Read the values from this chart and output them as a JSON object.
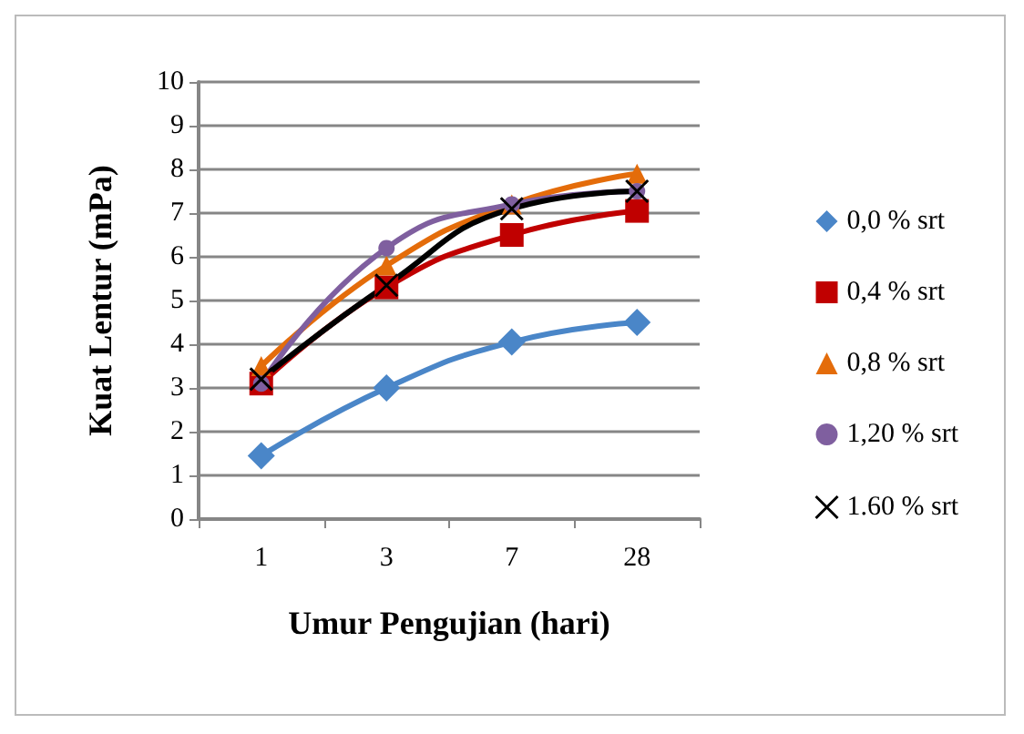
{
  "chart_data": {
    "type": "line",
    "xlabel": "Umur Pengujian (hari)",
    "ylabel": "Kuat Lentur (mPa)",
    "categories": [
      "1",
      "3",
      "7",
      "28"
    ],
    "ylim": [
      0,
      10
    ],
    "yticks": [
      0,
      1,
      2,
      3,
      4,
      5,
      6,
      7,
      8,
      9,
      10
    ],
    "grid": "y",
    "legend": "right",
    "line_style": "solid",
    "series": [
      {
        "name": "0,0 % srt",
        "color": "#4a86c8",
        "marker": "diamond",
        "values": [
          1.45,
          3.0,
          4.05,
          4.5
        ]
      },
      {
        "name": "0,4 % srt",
        "color": "#c00000",
        "marker": "square",
        "values": [
          3.1,
          5.3,
          6.5,
          7.05
        ]
      },
      {
        "name": "0,8 % srt",
        "color": "#e46c0a",
        "marker": "triangle",
        "values": [
          3.5,
          5.8,
          7.2,
          7.9
        ]
      },
      {
        "name": "1,20 % srt",
        "color": "#7f5f9f",
        "marker": "circle",
        "values": [
          3.1,
          6.2,
          7.2,
          7.5
        ]
      },
      {
        "name": "1.60 % srt",
        "color": "#000000",
        "marker": "cross",
        "values": [
          3.2,
          5.35,
          7.1,
          7.5
        ]
      }
    ]
  }
}
